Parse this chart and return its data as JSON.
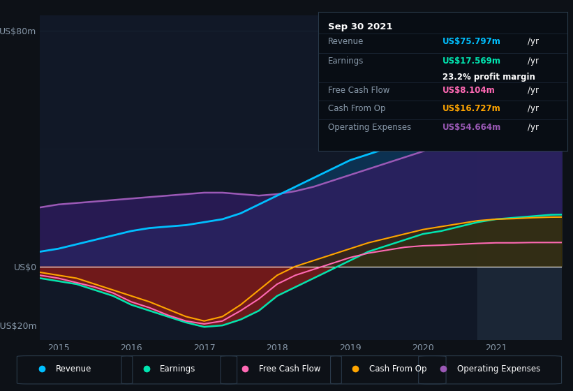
{
  "bg_color": "#0d1117",
  "panel_bg": "#111827",
  "text_color": "#8899aa",
  "grid_color": "#1a2535",
  "years": [
    2014.75,
    2015.0,
    2015.25,
    2015.5,
    2015.75,
    2016.0,
    2016.25,
    2016.5,
    2016.75,
    2017.0,
    2017.25,
    2017.5,
    2017.75,
    2018.0,
    2018.25,
    2018.5,
    2018.75,
    2019.0,
    2019.25,
    2019.5,
    2019.75,
    2020.0,
    2020.25,
    2020.5,
    2020.75,
    2021.0,
    2021.25,
    2021.5,
    2021.75,
    2021.9
  ],
  "revenue": [
    5.0,
    6.0,
    7.5,
    9.0,
    10.5,
    12.0,
    13.0,
    13.5,
    14.0,
    15.0,
    16.0,
    18.0,
    21.0,
    24.0,
    27.0,
    30.0,
    33.0,
    36.0,
    38.0,
    40.0,
    43.0,
    48.0,
    53.0,
    57.0,
    62.0,
    66.0,
    68.0,
    71.0,
    74.0,
    76.0
  ],
  "operating_expenses": [
    20.0,
    21.0,
    21.5,
    22.0,
    22.5,
    23.0,
    23.5,
    24.0,
    24.5,
    25.0,
    25.0,
    24.5,
    24.0,
    24.5,
    25.5,
    27.0,
    29.0,
    31.0,
    33.0,
    35.0,
    37.0,
    39.0,
    41.0,
    43.0,
    46.0,
    49.0,
    51.0,
    53.0,
    54.5,
    55.0
  ],
  "earnings": [
    -4.0,
    -5.0,
    -6.0,
    -8.0,
    -10.0,
    -13.0,
    -15.0,
    -17.0,
    -19.0,
    -20.5,
    -20.0,
    -18.0,
    -15.0,
    -10.0,
    -7.0,
    -4.0,
    -1.0,
    2.0,
    5.0,
    7.0,
    9.0,
    11.0,
    12.0,
    13.5,
    15.0,
    16.0,
    16.5,
    17.0,
    17.5,
    17.569
  ],
  "free_cash_flow": [
    -3.0,
    -4.0,
    -5.5,
    -7.0,
    -9.0,
    -12.0,
    -14.0,
    -16.5,
    -18.5,
    -19.5,
    -18.5,
    -15.0,
    -11.0,
    -6.0,
    -3.0,
    -1.0,
    1.0,
    3.0,
    4.5,
    5.5,
    6.5,
    7.0,
    7.2,
    7.5,
    7.8,
    8.0,
    8.0,
    8.1,
    8.1,
    8.104
  ],
  "cash_from_op": [
    -2.0,
    -3.0,
    -4.0,
    -6.0,
    -8.0,
    -10.0,
    -12.0,
    -14.5,
    -17.0,
    -18.5,
    -17.0,
    -13.0,
    -8.0,
    -3.0,
    0.0,
    2.0,
    4.0,
    6.0,
    8.0,
    9.5,
    11.0,
    12.5,
    13.5,
    14.5,
    15.5,
    16.0,
    16.2,
    16.5,
    16.7,
    16.727
  ],
  "revenue_color": "#00bfff",
  "earnings_color": "#00e5b0",
  "fcf_color": "#ff69b4",
  "cashop_color": "#ffa500",
  "opex_color": "#9b59b6",
  "ylim_min": -25,
  "ylim_max": 85,
  "yticks": [
    -20,
    0,
    80
  ],
  "ytick_labels": [
    "-US$20m",
    "US$0",
    "US$80m"
  ],
  "xticks": [
    2015,
    2016,
    2017,
    2018,
    2019,
    2020,
    2021
  ],
  "info_box": {
    "date": "Sep 30 2021",
    "revenue_val": "US$75.797m",
    "earnings_val": "US$17.569m",
    "profit_margin": "23.2%",
    "fcf_val": "US$8.104m",
    "cashop_val": "US$16.727m",
    "opex_val": "US$54.664m"
  },
  "legend_items": [
    {
      "label": "Revenue",
      "color": "#00bfff"
    },
    {
      "label": "Earnings",
      "color": "#00e5b0"
    },
    {
      "label": "Free Cash Flow",
      "color": "#ff69b4"
    },
    {
      "label": "Cash From Op",
      "color": "#ffa500"
    },
    {
      "label": "Operating Expenses",
      "color": "#9b59b6"
    }
  ],
  "highlight_x_start": 2020.75
}
